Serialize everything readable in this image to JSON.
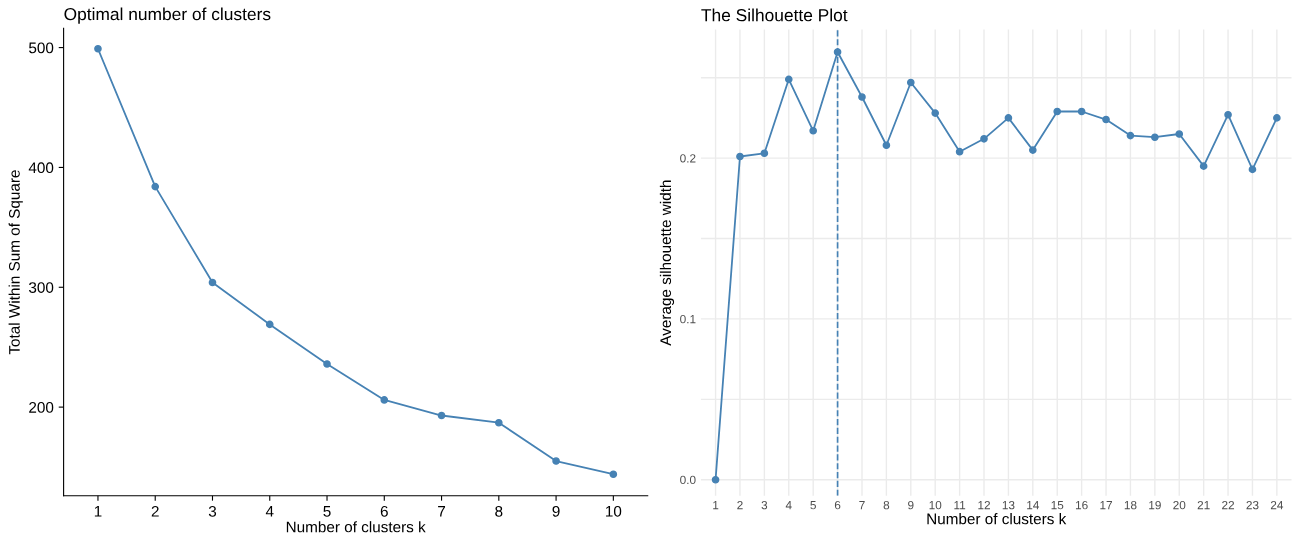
{
  "chart_data": [
    {
      "type": "line",
      "title": "Optimal number of clusters",
      "xlabel": "Number of clusters k",
      "ylabel": "Total Within Sum of Square",
      "categories": [
        "1",
        "2",
        "3",
        "4",
        "5",
        "6",
        "7",
        "8",
        "9",
        "10"
      ],
      "series": [
        {
          "color": "#4682b4",
          "values": [
            499,
            384,
            304,
            269,
            236,
            206,
            193,
            187,
            155,
            144
          ]
        }
      ],
      "ylim": [
        126,
        516
      ],
      "yticks": [
        200,
        300,
        400,
        500
      ],
      "grid": false,
      "marker": "circle",
      "line_style": "solid"
    },
    {
      "type": "line",
      "title": "The Silhouette Plot",
      "xlabel": "Number of clusters k",
      "ylabel": "Average silhouette width",
      "categories": [
        "1",
        "2",
        "3",
        "4",
        "5",
        "6",
        "7",
        "8",
        "9",
        "10",
        "11",
        "12",
        "13",
        "14",
        "15",
        "16",
        "17",
        "18",
        "19",
        "20",
        "21",
        "22",
        "23",
        "24"
      ],
      "series": [
        {
          "color": "#4682b4",
          "values": [
            0.0,
            0.201,
            0.203,
            0.249,
            0.217,
            0.266,
            0.238,
            0.208,
            0.247,
            0.228,
            0.204,
            0.212,
            0.225,
            0.205,
            0.229,
            0.229,
            0.224,
            0.214,
            0.213,
            0.215,
            0.195,
            0.227,
            0.193,
            0.225
          ]
        }
      ],
      "ylim": [
        -0.01,
        0.28
      ],
      "yticks": [
        {
          "value": 0.0,
          "label": "0.0"
        },
        {
          "value": 0.05,
          "label": null
        },
        0.1,
        {
          "value": 0.15,
          "label": null
        },
        0.2,
        {
          "value": 0.25,
          "label": null
        }
      ],
      "grid": true,
      "marker": "circle",
      "line_style": "solid",
      "ref_lines": [
        {
          "axis": "x",
          "value": "6",
          "color": "#4682b4",
          "line_style": "dashed"
        }
      ]
    }
  ]
}
